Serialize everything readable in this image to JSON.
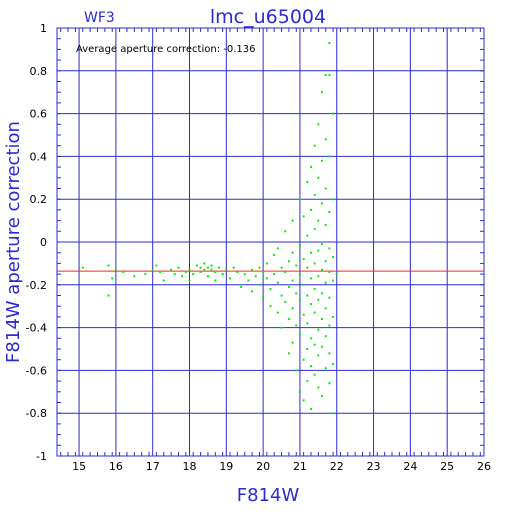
{
  "chart_data": {
    "type": "scatter",
    "title": "lmc_u65004",
    "subtitle": "WF3",
    "xlabel": "F814W",
    "ylabel": "F814W aperture correction",
    "annotation": "Average aperture correction: -0.136",
    "xlim": [
      14.4,
      26
    ],
    "ylim": [
      -1,
      1
    ],
    "x_ticks": [
      "15",
      "16",
      "17",
      "18",
      "19",
      "20",
      "21",
      "22",
      "23",
      "24",
      "25",
      "26"
    ],
    "y_ticks": [
      "1",
      "0.8",
      "0.6",
      "0.4",
      "0.2",
      "0",
      "-0.2",
      "-0.4",
      "-0.6",
      "-0.8",
      "-1"
    ],
    "grid": true,
    "reference_lines": [
      {
        "y": -0.136,
        "color": "#ff2020"
      }
    ],
    "series": [
      {
        "color": "#00ee00",
        "points": [
          [
            15.1,
            -0.12
          ],
          [
            15.8,
            -0.11
          ],
          [
            15.8,
            -0.25
          ],
          [
            15.9,
            -0.17
          ],
          [
            16.0,
            -0.13
          ],
          [
            16.2,
            -0.14
          ],
          [
            16.5,
            -0.16
          ],
          [
            16.8,
            -0.15
          ],
          [
            17.0,
            -0.13
          ],
          [
            17.1,
            -0.11
          ],
          [
            17.2,
            -0.14
          ],
          [
            17.3,
            -0.18
          ],
          [
            17.5,
            -0.13
          ],
          [
            17.6,
            -0.15
          ],
          [
            17.7,
            -0.12
          ],
          [
            17.8,
            -0.16
          ],
          [
            17.9,
            -0.14
          ],
          [
            18.0,
            -0.13
          ],
          [
            18.0,
            -0.18
          ],
          [
            18.1,
            -0.15
          ],
          [
            18.2,
            -0.11
          ],
          [
            18.3,
            -0.12
          ],
          [
            18.3,
            -0.14
          ],
          [
            18.4,
            -0.1
          ],
          [
            18.4,
            -0.13
          ],
          [
            18.5,
            -0.12
          ],
          [
            18.5,
            -0.16
          ],
          [
            18.6,
            -0.11
          ],
          [
            18.6,
            -0.13
          ],
          [
            18.7,
            -0.14
          ],
          [
            18.7,
            -0.18
          ],
          [
            18.8,
            -0.12
          ],
          [
            18.9,
            -0.15
          ],
          [
            19.0,
            -0.13
          ],
          [
            19.1,
            -0.17
          ],
          [
            19.2,
            -0.12
          ],
          [
            19.3,
            -0.14
          ],
          [
            19.4,
            -0.21
          ],
          [
            19.5,
            -0.15
          ],
          [
            19.6,
            -0.18
          ],
          [
            19.7,
            -0.13
          ],
          [
            19.7,
            -0.23
          ],
          [
            19.8,
            -0.16
          ],
          [
            19.9,
            -0.12
          ],
          [
            19.9,
            -0.2
          ],
          [
            20.0,
            -0.14
          ],
          [
            20.0,
            -0.26
          ],
          [
            20.1,
            -0.1
          ],
          [
            20.1,
            -0.17
          ],
          [
            20.2,
            -0.22
          ],
          [
            20.2,
            -0.3
          ],
          [
            20.3,
            -0.06
          ],
          [
            20.3,
            -0.15
          ],
          [
            20.4,
            -0.03
          ],
          [
            20.4,
            -0.19
          ],
          [
            20.4,
            -0.33
          ],
          [
            20.5,
            -0.12
          ],
          [
            20.5,
            -0.25
          ],
          [
            20.5,
            -0.4
          ],
          [
            20.6,
            0.05
          ],
          [
            20.6,
            -0.14
          ],
          [
            20.6,
            -0.28
          ],
          [
            20.7,
            -0.09
          ],
          [
            20.7,
            -0.21
          ],
          [
            20.7,
            -0.36
          ],
          [
            20.7,
            -0.52
          ],
          [
            20.8,
            0.1
          ],
          [
            20.8,
            -0.05
          ],
          [
            20.8,
            -0.18
          ],
          [
            20.8,
            -0.31
          ],
          [
            20.8,
            -0.47
          ],
          [
            20.9,
            -0.11
          ],
          [
            20.9,
            -0.24
          ],
          [
            20.9,
            -0.39
          ],
          [
            20.9,
            -0.6
          ],
          [
            21.0,
            0.2
          ],
          [
            21.0,
            -0.02
          ],
          [
            21.0,
            -0.15
          ],
          [
            21.0,
            -0.27
          ],
          [
            21.0,
            -0.43
          ],
          [
            21.0,
            -0.7
          ],
          [
            21.1,
            0.12
          ],
          [
            21.1,
            -0.08
          ],
          [
            21.1,
            -0.2
          ],
          [
            21.1,
            -0.34
          ],
          [
            21.1,
            -0.55
          ],
          [
            21.1,
            -0.74
          ],
          [
            21.2,
            0.28
          ],
          [
            21.2,
            0.03
          ],
          [
            21.2,
            -0.12
          ],
          [
            21.2,
            -0.25
          ],
          [
            21.2,
            -0.38
          ],
          [
            21.2,
            -0.5
          ],
          [
            21.2,
            -0.65
          ],
          [
            21.3,
            0.35
          ],
          [
            21.3,
            0.15
          ],
          [
            21.3,
            -0.05
          ],
          [
            21.3,
            -0.17
          ],
          [
            21.3,
            -0.29
          ],
          [
            21.3,
            -0.45
          ],
          [
            21.3,
            -0.58
          ],
          [
            21.3,
            -0.78
          ],
          [
            21.4,
            0.45
          ],
          [
            21.4,
            0.22
          ],
          [
            21.4,
            0.06
          ],
          [
            21.4,
            -0.1
          ],
          [
            21.4,
            -0.22
          ],
          [
            21.4,
            -0.33
          ],
          [
            21.4,
            -0.48
          ],
          [
            21.4,
            -0.62
          ],
          [
            21.5,
            0.55
          ],
          [
            21.5,
            0.3
          ],
          [
            21.5,
            0.1
          ],
          [
            21.5,
            -0.04
          ],
          [
            21.5,
            -0.16
          ],
          [
            21.5,
            -0.27
          ],
          [
            21.5,
            -0.41
          ],
          [
            21.5,
            -0.53
          ],
          [
            21.5,
            -0.68
          ],
          [
            21.6,
            0.7
          ],
          [
            21.6,
            0.38
          ],
          [
            21.6,
            0.18
          ],
          [
            21.6,
            -0.01
          ],
          [
            21.6,
            -0.13
          ],
          [
            21.6,
            -0.24
          ],
          [
            21.6,
            -0.36
          ],
          [
            21.6,
            -0.49
          ],
          [
            21.6,
            -0.72
          ],
          [
            21.7,
            0.78
          ],
          [
            21.7,
            0.48
          ],
          [
            21.7,
            0.25
          ],
          [
            21.7,
            0.08
          ],
          [
            21.7,
            -0.09
          ],
          [
            21.7,
            -0.19
          ],
          [
            21.7,
            -0.31
          ],
          [
            21.7,
            -0.44
          ],
          [
            21.7,
            -0.59
          ],
          [
            21.8,
            0.93
          ],
          [
            21.8,
            0.78
          ],
          [
            21.8,
            0.4
          ],
          [
            21.8,
            0.14
          ],
          [
            21.8,
            -0.03
          ],
          [
            21.8,
            -0.14
          ],
          [
            21.8,
            -0.26
          ],
          [
            21.8,
            -0.39
          ],
          [
            21.8,
            -0.52
          ],
          [
            21.8,
            -0.66
          ],
          [
            21.9,
            0.6
          ],
          [
            21.9,
            0.2
          ],
          [
            21.9,
            -0.07
          ],
          [
            21.9,
            -0.18
          ],
          [
            21.9,
            -0.35
          ],
          [
            21.9,
            -0.57
          ],
          [
            21.9,
            -0.8
          ],
          [
            22.0,
            -0.15
          ]
        ]
      }
    ]
  }
}
